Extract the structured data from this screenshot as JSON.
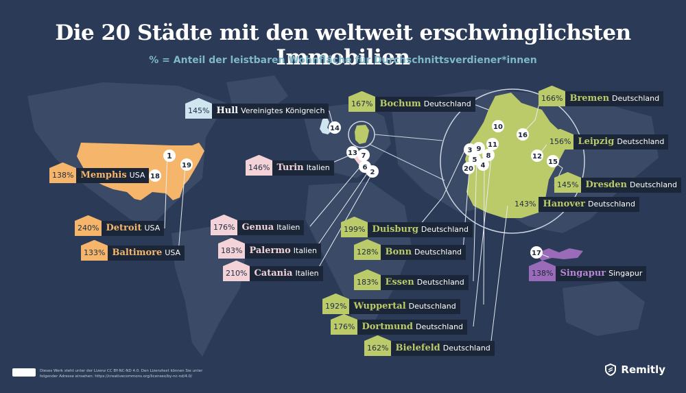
{
  "title": "Die 20 Städte mit den weltweit erschwinglichsten Immobilien",
  "subtitle": "% = Anteil der leistbaren Wohnfläche für Durchschnittsverdiener*innen",
  "colors": {
    "background": "#2b3a56",
    "land": "#3b4a66",
    "usa": "#f5b66b",
    "germany": "#bccb6a",
    "italy": "#f3d3d8",
    "uk": "#cfe6f0",
    "singapore": "#9a6bb8",
    "label_dark": "#1b2638"
  },
  "cities": [
    {
      "name": "Hull",
      "country": "Vereinigtes Königreich",
      "pct": "145%",
      "color": "#cfe6f0"
    },
    {
      "name": "Bochum",
      "country": "Deutschland",
      "pct": "167%",
      "color": "#bccb6a"
    },
    {
      "name": "Bremen",
      "country": "Deutschland",
      "pct": "166%",
      "color": "#bccb6a"
    },
    {
      "name": "Leipzig",
      "country": "Deutschland",
      "pct": "156%",
      "color": "#bccb6a"
    },
    {
      "name": "Dresden",
      "country": "Deutschland",
      "pct": "145%",
      "color": "#bccb6a"
    },
    {
      "name": "Hanover",
      "country": "Deutschland",
      "pct": "143%",
      "color": "#bccb6a"
    },
    {
      "name": "Memphis",
      "country": "USA",
      "pct": "138%",
      "color": "#f5b66b"
    },
    {
      "name": "Turin",
      "country": "Italien",
      "pct": "146%",
      "color": "#f3d3d8"
    },
    {
      "name": "Detroit",
      "country": "USA",
      "pct": "240%",
      "color": "#f5b66b"
    },
    {
      "name": "Genua",
      "country": "Italien",
      "pct": "176%",
      "color": "#f3d3d8"
    },
    {
      "name": "Duisburg",
      "country": "Deutschland",
      "pct": "199%",
      "color": "#bccb6a"
    },
    {
      "name": "Palermo",
      "country": "Italien",
      "pct": "183%",
      "color": "#f3d3d8"
    },
    {
      "name": "Bonn",
      "country": "Deutschland",
      "pct": "128%",
      "color": "#bccb6a"
    },
    {
      "name": "Baltimore",
      "country": "USA",
      "pct": "133%",
      "color": "#f5b66b"
    },
    {
      "name": "Catania",
      "country": "Italien",
      "pct": "210%",
      "color": "#f3d3d8"
    },
    {
      "name": "Singapur",
      "country": "Singapur",
      "pct": "138%",
      "color": "#9a6bb8"
    },
    {
      "name": "Essen",
      "country": "Deutschland",
      "pct": "183%",
      "color": "#bccb6a"
    },
    {
      "name": "Wuppertal",
      "country": "Deutschland",
      "pct": "192%",
      "color": "#bccb6a"
    },
    {
      "name": "Dortmund",
      "country": "Deutschland",
      "pct": "176%",
      "color": "#bccb6a"
    },
    {
      "name": "Bielefeld",
      "country": "Deutschland",
      "pct": "162%",
      "color": "#bccb6a"
    }
  ],
  "markers": [
    "1",
    "18",
    "19",
    "14",
    "13",
    "7",
    "6",
    "2",
    "3",
    "9",
    "11",
    "5",
    "8",
    "4",
    "20",
    "10",
    "16",
    "12",
    "15",
    "17"
  ],
  "logo": {
    "text": "Remitly",
    "icon": "remitly-shield-icon"
  },
  "license": {
    "text": "Dieses Werk steht unter der Lizenz CC BY-NC-ND 4.0. Den Lizenztext können Sie unter folgender Adresse einsehen: https://creativecommons.org/licenses/by-nc-nd/4.0/",
    "badge": "cc-by-nc-nd-icon"
  }
}
